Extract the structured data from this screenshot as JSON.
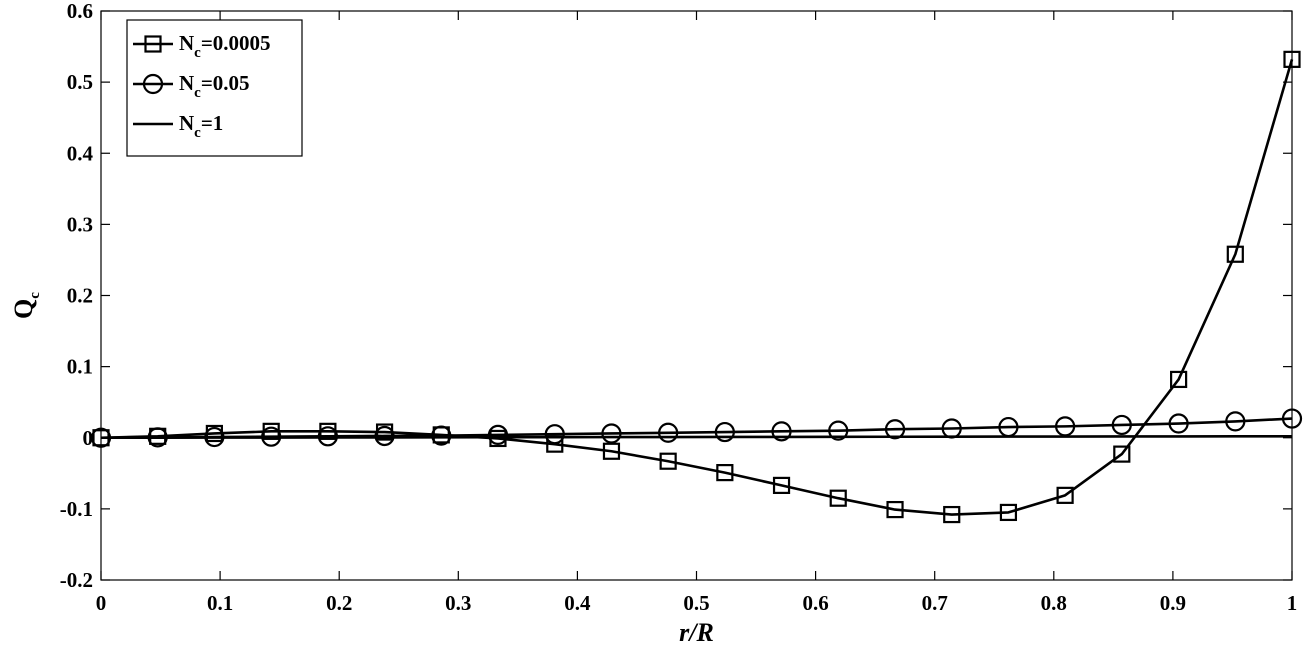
{
  "chart_data": {
    "type": "line",
    "title": "",
    "xlabel": "r/R",
    "ylabel": "Q",
    "ylabel_sub": "c",
    "xlim": [
      0,
      1
    ],
    "ylim": [
      -0.2,
      0.6
    ],
    "xticks": [
      0,
      0.1,
      0.2,
      0.3,
      0.4,
      0.5,
      0.6,
      0.7,
      0.8,
      0.9,
      1
    ],
    "xtick_labels": [
      "0",
      "0.1",
      "0.2",
      "0.3",
      "0.4",
      "0.5",
      "0.6",
      "0.7",
      "0.8",
      "0.9",
      "1"
    ],
    "yticks": [
      -0.2,
      -0.1,
      0,
      0.1,
      0.2,
      0.3,
      0.4,
      0.5,
      0.6
    ],
    "ytick_labels": [
      "-0.2",
      "-0.1",
      "0",
      "0.1",
      "0.2",
      "0.3",
      "0.4",
      "0.5",
      "0.6"
    ],
    "grid": false,
    "legend_position": "top-left",
    "line_color": "#000000",
    "x": [
      0,
      0.0476,
      0.0952,
      0.1429,
      0.1905,
      0.2381,
      0.2857,
      0.3333,
      0.381,
      0.4286,
      0.4762,
      0.5238,
      0.5714,
      0.619,
      0.6667,
      0.7143,
      0.7619,
      0.8095,
      0.8571,
      0.9048,
      0.9524,
      1
    ],
    "series": [
      {
        "name": "N",
        "name_sub": "c",
        "name_value": "=0.0005",
        "marker": "square",
        "values": [
          0,
          0.002,
          0.006,
          0.009,
          0.009,
          0.008,
          0.004,
          -0.001,
          -0.009,
          -0.019,
          -0.033,
          -0.049,
          -0.067,
          -0.085,
          -0.101,
          -0.108,
          -0.105,
          -0.081,
          -0.023,
          0.082,
          0.258,
          0.532
        ]
      },
      {
        "name": "N",
        "name_sub": "c",
        "name_value": "=0.05",
        "marker": "circle",
        "values": [
          0,
          0.0005,
          0.001,
          0.0015,
          0.002,
          0.0025,
          0.003,
          0.004,
          0.005,
          0.006,
          0.007,
          0.008,
          0.009,
          0.01,
          0.012,
          0.013,
          0.015,
          0.016,
          0.018,
          0.02,
          0.023,
          0.027
        ]
      },
      {
        "name": "N",
        "name_sub": "c",
        "name_value": "=1",
        "marker": "none",
        "values": [
          0,
          0.0001,
          0.0002,
          0.0003,
          0.0004,
          0.0005,
          0.0006,
          0.0007,
          0.0008,
          0.0009,
          0.001,
          0.0011,
          0.0012,
          0.0013,
          0.0014,
          0.0015,
          0.0016,
          0.0017,
          0.0018,
          0.0019,
          0.002,
          0.002
        ]
      }
    ]
  }
}
